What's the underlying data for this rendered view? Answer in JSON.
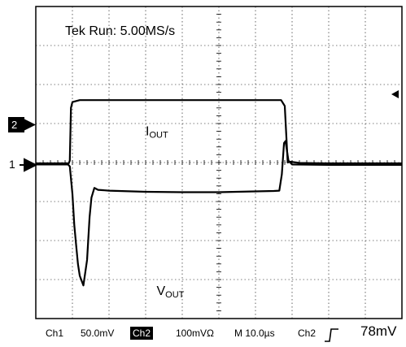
{
  "colors": {
    "trace": "#000000",
    "grid": "#000000",
    "background": "#ffffff"
  },
  "header": {
    "title": "Tek Run: 5.00MS/s"
  },
  "markers": {
    "ch2": "2",
    "ch1": "1"
  },
  "footer": {
    "ch1_label": "Ch1",
    "ch1_scale": "50.0mV",
    "ch2_label": "Ch2",
    "ch2_scale": "100mVΩ",
    "timebase": "M 10.0µs",
    "trigger_source": "Ch2",
    "trigger_icon": "rising-edge-icon",
    "trigger_level": "78mV"
  },
  "chart_data": {
    "type": "line",
    "title": "Tek Run: 5.00MS/s",
    "grid": true,
    "divisions": {
      "x": 10,
      "y": 8
    },
    "xlim": [
      0,
      10
    ],
    "ylim": [
      -4,
      4
    ],
    "series": [
      {
        "name": "IOUT",
        "label": "I",
        "label_sub": "OUT",
        "channel": 2,
        "points": [
          [
            0,
            -0.02
          ],
          [
            0.9,
            -0.02
          ],
          [
            0.93,
            0.05
          ],
          [
            0.96,
            1.4
          ],
          [
            1.0,
            1.55
          ],
          [
            1.2,
            1.6
          ],
          [
            3.0,
            1.6
          ],
          [
            5.0,
            1.6
          ],
          [
            6.7,
            1.6
          ],
          [
            6.8,
            1.45
          ],
          [
            6.88,
            0.0
          ],
          [
            6.95,
            0.02
          ],
          [
            7.2,
            -0.01
          ],
          [
            8.0,
            -0.02
          ],
          [
            10.0,
            -0.02
          ]
        ]
      },
      {
        "name": "VOUT",
        "label": "V",
        "label_sub": "OUT",
        "channel": 1,
        "points": [
          [
            0,
            -0.05
          ],
          [
            0.88,
            -0.05
          ],
          [
            0.93,
            -0.1
          ],
          [
            1.0,
            -0.8
          ],
          [
            1.05,
            -1.6
          ],
          [
            1.1,
            -2.1
          ],
          [
            1.15,
            -2.6
          ],
          [
            1.2,
            -2.9
          ],
          [
            1.3,
            -3.15
          ],
          [
            1.4,
            -2.5
          ],
          [
            1.47,
            -1.4
          ],
          [
            1.52,
            -0.9
          ],
          [
            1.6,
            -0.65
          ],
          [
            1.7,
            -0.7
          ],
          [
            2.0,
            -0.72
          ],
          [
            3.0,
            -0.75
          ],
          [
            4.0,
            -0.76
          ],
          [
            5.0,
            -0.76
          ],
          [
            6.0,
            -0.74
          ],
          [
            6.5,
            -0.73
          ],
          [
            6.65,
            -0.72
          ],
          [
            6.72,
            -0.3
          ],
          [
            6.78,
            0.5
          ],
          [
            6.82,
            0.55
          ],
          [
            6.86,
            0.3
          ],
          [
            6.9,
            0.05
          ],
          [
            7.0,
            -0.05
          ],
          [
            8.0,
            -0.06
          ],
          [
            10.0,
            -0.06
          ]
        ]
      }
    ]
  }
}
